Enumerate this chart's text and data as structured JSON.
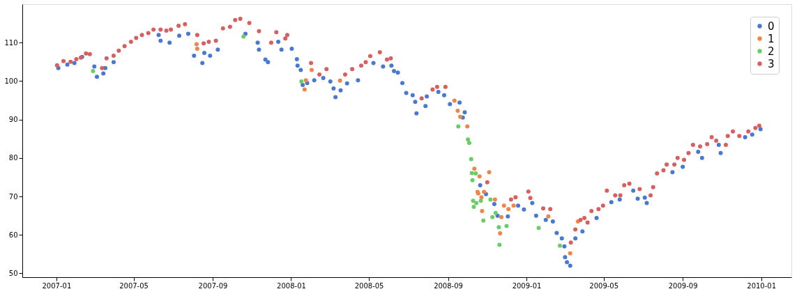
{
  "chart_data": {
    "type": "scatter",
    "marker": "circle",
    "grid": false,
    "legend": "top right",
    "xlim": [
      "2006-11-09",
      "2010-02-17"
    ],
    "xticks": [
      "2007-01",
      "2007-05",
      "2007-09",
      "2008-01",
      "2008-05",
      "2008-09",
      "2009-01",
      "2009-05",
      "2009-09",
      "2010-01"
    ],
    "ylim": [
      49,
      120
    ],
    "yticks": [
      50,
      60,
      70,
      80,
      90,
      100,
      110
    ],
    "series": [
      {
        "name": "0",
        "color": "#4878d0",
        "x": [
          "2007-01-04",
          "2007-01-18",
          "2007-01-29",
          "2007-02-10",
          "2007-03-01",
          "2007-03-05",
          "2007-03-15",
          "2007-03-18",
          "2007-03-31",
          "2007-06-09",
          "2007-06-12",
          "2007-06-26",
          "2007-07-11",
          "2007-07-25",
          "2007-08-03",
          "2007-08-16",
          "2007-08-19",
          "2007-08-28",
          "2007-09-09",
          "2007-10-22",
          "2007-11-10",
          "2007-11-12",
          "2007-11-22",
          "2007-11-26",
          "2007-12-12",
          "2007-12-17",
          "2008-01-02",
          "2008-01-10",
          "2008-01-11",
          "2008-01-16",
          "2008-01-19",
          "2008-01-26",
          "2008-02-06",
          "2008-02-20",
          "2008-03-02",
          "2008-03-07",
          "2008-03-10",
          "2008-03-18",
          "2008-03-28",
          "2008-04-14",
          "2008-05-08",
          "2008-05-23",
          "2008-06-05",
          "2008-06-09",
          "2008-06-15",
          "2008-06-22",
          "2008-06-28",
          "2008-07-08",
          "2008-07-12",
          "2008-07-14",
          "2008-07-28",
          "2008-07-30",
          "2008-08-17",
          "2008-08-26",
          "2008-09-04",
          "2008-09-19",
          "2008-09-24",
          "2008-09-27",
          "2008-10-21",
          "2008-10-30",
          "2008-11-12",
          "2008-11-17",
          "2008-12-03",
          "2008-12-19",
          "2008-12-28",
          "2009-01-10",
          "2009-01-16",
          "2009-01-31",
          "2009-02-11",
          "2009-02-17",
          "2009-02-25",
          "2009-03-01",
          "2009-03-02",
          "2009-03-05",
          "2009-03-10",
          "2009-03-18",
          "2009-03-29",
          "2009-04-20",
          "2009-05-13",
          "2009-05-26",
          "2009-06-16",
          "2009-06-23",
          "2009-07-04",
          "2009-07-07",
          "2009-08-16",
          "2009-09-01",
          "2009-09-25",
          "2009-10-01",
          "2009-10-27",
          "2009-10-30",
          "2009-12-07",
          "2009-12-18",
          "2009-12-31"
        ],
        "values": [
          103.4,
          104.3,
          104.7,
          106.3,
          103.8,
          101.1,
          102,
          103.4,
          104.9,
          112,
          110.5,
          110,
          111.8,
          112.3,
          106.6,
          104.7,
          107.3,
          106.6,
          108.2,
          112.3,
          110,
          108.2,
          105.6,
          104.9,
          110.2,
          108.2,
          108.4,
          105.7,
          104,
          102.9,
          99,
          99.5,
          100.2,
          100.8,
          99.9,
          98.1,
          95.8,
          97.6,
          99.4,
          100.2,
          104.7,
          103.8,
          104,
          102.6,
          102.2,
          99.5,
          96.9,
          96.3,
          94.6,
          91.6,
          93.5,
          96,
          97.2,
          96.3,
          94,
          94.4,
          90.5,
          91.9,
          72.9,
          70.6,
          68,
          65,
          64.8,
          67.6,
          66.6,
          68.3,
          65,
          63.9,
          63.5,
          60.5,
          59.1,
          57,
          54.2,
          52.9,
          52,
          59.1,
          60.9,
          64.4,
          68.5,
          69.2,
          71.5,
          69.4,
          69.7,
          68.3,
          76.3,
          77.7,
          81.6,
          80,
          83.4,
          81.3,
          85.4,
          86.1,
          87.5
        ]
      },
      {
        "name": "1",
        "color": "#ee854a",
        "x": [
          "2007-08-07",
          "2007-08-08",
          "2008-01-22",
          "2008-01-24",
          "2008-02-02",
          "2008-03-17",
          "2008-09-11",
          "2008-09-16",
          "2008-09-20",
          "2008-10-01",
          "2008-10-12",
          "2008-10-17",
          "2008-10-18",
          "2008-10-20",
          "2008-10-23",
          "2008-10-24",
          "2008-10-27",
          "2008-11-04",
          "2008-11-13",
          "2008-11-21",
          "2008-11-23",
          "2008-11-27",
          "2008-12-04",
          "2008-12-12",
          "2009-02-04",
          "2009-03-10",
          "2009-03-22"
        ],
        "values": [
          109.6,
          108.4,
          97.8,
          100.2,
          102.9,
          100.1,
          94.9,
          92.3,
          90.7,
          88.2,
          77.2,
          71.2,
          70.8,
          75.2,
          69.8,
          66.2,
          71.2,
          76.3,
          69.2,
          60.4,
          64.6,
          67.6,
          66.7,
          67.6,
          64.8,
          55.2,
          63.5
        ]
      },
      {
        "name": "2",
        "color": "#6acc64",
        "x": [
          "2007-02-27",
          "2007-10-19",
          "2008-01-17",
          "2008-09-17",
          "2008-10-02",
          "2008-10-04",
          "2008-10-07",
          "2008-10-08",
          "2008-10-09",
          "2008-10-10",
          "2008-10-11",
          "2008-10-14",
          "2008-10-15",
          "2008-10-22",
          "2008-10-26",
          "2008-11-06",
          "2008-11-09",
          "2008-11-14",
          "2008-11-19",
          "2008-11-20",
          "2008-12-01",
          "2009-01-20",
          "2009-02-22"
        ],
        "values": [
          102.6,
          111.6,
          99.9,
          88.2,
          84.8,
          83.9,
          79.7,
          76.1,
          74.2,
          68.9,
          67.3,
          76,
          68.3,
          68.9,
          63.7,
          69.2,
          64.6,
          65.7,
          62,
          57.4,
          62.3,
          61.8,
          57.2
        ]
      },
      {
        "name": "3",
        "color": "#d65f5f",
        "x": [
          "2007-01-02",
          "2007-01-12",
          "2007-01-23",
          "2007-02-01",
          "2007-02-08",
          "2007-02-16",
          "2007-02-22",
          "2007-03-13",
          "2007-03-20",
          "2007-03-31",
          "2007-04-08",
          "2007-04-17",
          "2007-04-27",
          "2007-05-05",
          "2007-05-14",
          "2007-05-24",
          "2007-06-01",
          "2007-06-12",
          "2007-06-21",
          "2007-06-28",
          "2007-07-10",
          "2007-07-20",
          "2007-08-08",
          "2007-08-18",
          "2007-08-26",
          "2007-09-06",
          "2007-09-17",
          "2007-09-28",
          "2007-10-06",
          "2007-10-14",
          "2007-10-28",
          "2007-11-12",
          "2007-12-01",
          "2007-12-09",
          "2007-12-23",
          "2007-12-26",
          "2008-02-01",
          "2008-02-14",
          "2008-02-25",
          "2008-03-25",
          "2008-04-05",
          "2008-04-19",
          "2008-04-26",
          "2008-05-03",
          "2008-05-18",
          "2008-05-29",
          "2008-06-04",
          "2008-07-22",
          "2008-08-08",
          "2008-08-15",
          "2008-08-28",
          "2008-11-01",
          "2008-12-08",
          "2008-12-15",
          "2009-01-04",
          "2009-01-07",
          "2009-01-27",
          "2009-02-07",
          "2009-03-11",
          "2009-03-18",
          "2009-03-26",
          "2009-04-01",
          "2009-04-06",
          "2009-04-12",
          "2009-04-23",
          "2009-04-30",
          "2009-05-06",
          "2009-05-19",
          "2009-05-27",
          "2009-06-02",
          "2009-06-10",
          "2009-06-26",
          "2009-07-13",
          "2009-07-17",
          "2009-07-23",
          "2009-08-02",
          "2009-08-07",
          "2009-08-19",
          "2009-08-24",
          "2009-09-03",
          "2009-09-10",
          "2009-09-17",
          "2009-09-28",
          "2009-10-09",
          "2009-10-16",
          "2009-10-23",
          "2009-11-07",
          "2009-11-10",
          "2009-11-18",
          "2009-11-28",
          "2009-12-12",
          "2009-12-23",
          "2009-12-29"
        ],
        "values": [
          104.1,
          105.2,
          105,
          105.7,
          106.1,
          107.2,
          107,
          103.4,
          105.9,
          106.6,
          107.9,
          109.1,
          110.2,
          111.2,
          112,
          112.5,
          113.4,
          113.4,
          113.1,
          113.4,
          114.4,
          114.8,
          112,
          109.8,
          110.2,
          110.5,
          113.7,
          114.1,
          115.9,
          116.2,
          115.1,
          113,
          110,
          112.7,
          111.1,
          112,
          104.7,
          101.7,
          103.1,
          101.7,
          103.1,
          104,
          104.9,
          106.5,
          107.5,
          105.6,
          105.9,
          95.5,
          97.8,
          98.5,
          98.5,
          73.7,
          69.2,
          69.8,
          71.3,
          69.6,
          66.9,
          66.7,
          58,
          61.4,
          63.9,
          64.4,
          63.2,
          66.2,
          66.7,
          67.6,
          71.5,
          70.3,
          70.3,
          72.9,
          73.3,
          71.9,
          70.3,
          72.4,
          76,
          76.8,
          78.3,
          78.3,
          80,
          79.5,
          81.3,
          83.4,
          83,
          83.6,
          85.4,
          84.5,
          83.4,
          85.7,
          86.9,
          85.7,
          86.9,
          87.8,
          88.4
        ]
      }
    ]
  }
}
